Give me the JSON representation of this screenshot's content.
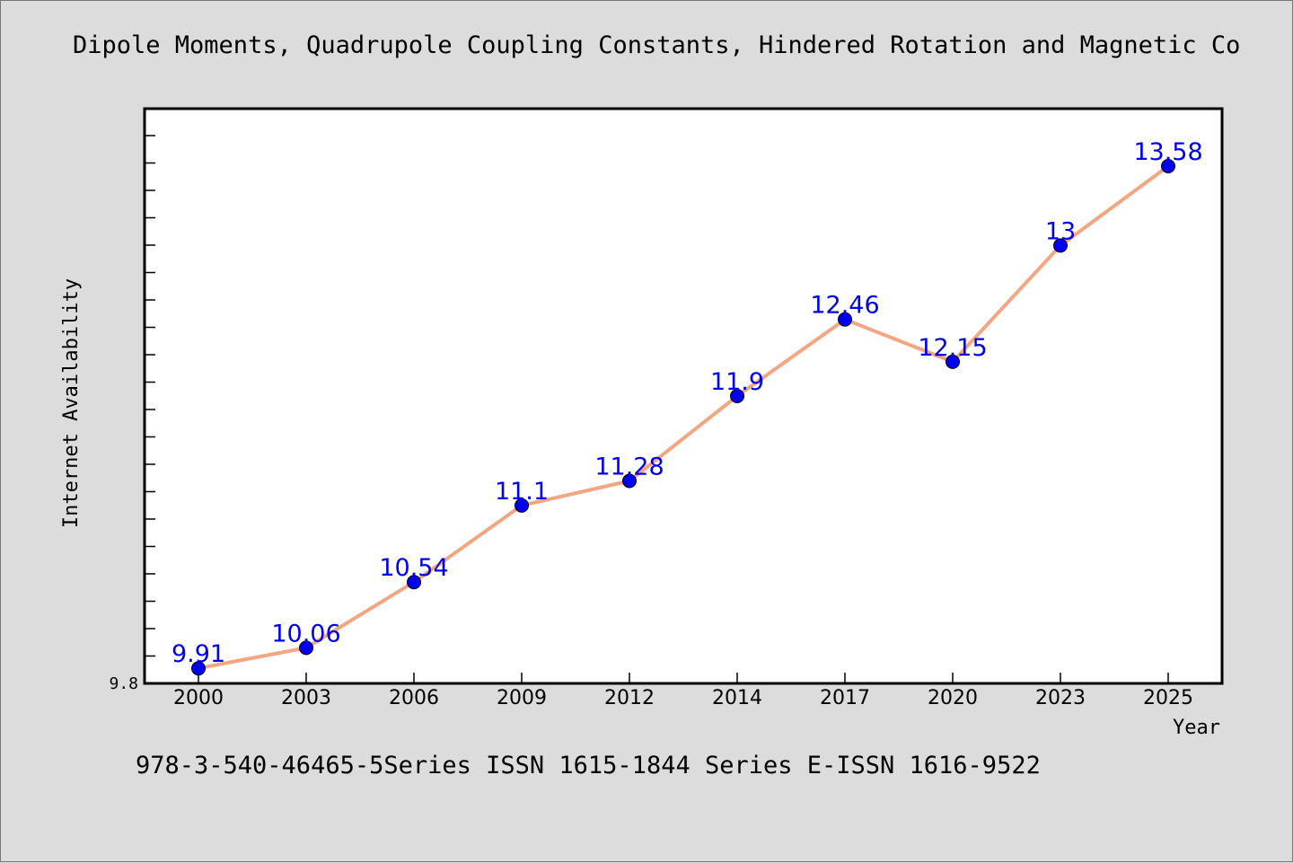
{
  "header": {
    "title": "Dipole Moments, Quadrupole Coupling Constants, Hindered Rotation and Magnetic Co"
  },
  "footer": {
    "note": "978-3-540-46465-5Series ISSN 1615-1844 Series E-ISSN 1616-9522"
  },
  "chart_data": {
    "type": "line",
    "categories": [
      "2000",
      "2003",
      "2006",
      "2009",
      "2012",
      "2014",
      "2017",
      "2020",
      "2023",
      "2025"
    ],
    "values": [
      9.91,
      10.06,
      10.54,
      11.1,
      11.28,
      11.9,
      12.46,
      12.15,
      13,
      13.58
    ],
    "data_labels": [
      "9.91",
      "10.06",
      "10.54",
      "11.1",
      "11.28",
      "11.9",
      "12.46",
      "12.15",
      "13",
      "13.58"
    ],
    "xlabel": "Year",
    "ylabel": "Internet Availability",
    "ylim": [
      9.8,
      14.0
    ],
    "y_tick_label": "9.8",
    "grid": false,
    "line_color": "#f4a582",
    "marker_color": "#0000ee",
    "label_color": "#0000ee"
  }
}
